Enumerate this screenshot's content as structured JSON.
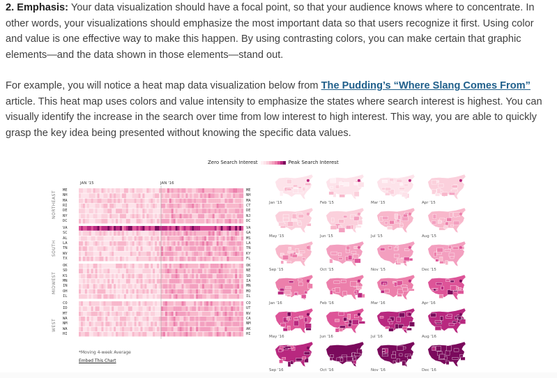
{
  "paragraph1": {
    "heading": "2. Emphasis:",
    "body": " Your data visualization should have a focal point, so that your audience knows where to concentrate. In other words, your visualizations should emphasize the most important data so that users recognize it first. Using color and value is one effective way to make this happen. By using contrasting colors, you can make certain that graphic elements—and the data shown in those elements—stand out."
  },
  "paragraph2": {
    "before": "For example, you will notice a heat map data visualization below from ",
    "link": "The Pudding’s “Where Slang Comes From”",
    "after": " article. This heat map uses colors and value intensity to emphasize the states where search interest is highest. You can visually identify the increase in the search over time from low interest to high interest. This way, you are able to quickly grasp the key idea being presented without knowing the specific data values."
  },
  "figure": {
    "legend_low": "Zero Search Interest",
    "legend_high": "Peak Search Interest",
    "month_left": "JAN '15",
    "month_right": "JAN '16",
    "regions": [
      "NORTHEAST",
      "SOUTH",
      "MIDWEST",
      "WEST"
    ],
    "states_left": [
      [
        "ME",
        "NH",
        "MA",
        "RI",
        "DE",
        "NY",
        "DC"
      ],
      [
        "VA",
        "SC",
        "AL",
        "LA",
        "TN",
        "WV",
        "TX"
      ],
      [
        "OK",
        "SD",
        "KS",
        "MN",
        "IN",
        "OH",
        "IL"
      ],
      [
        "CO",
        "ID",
        "MT",
        "WA",
        "NM",
        "WA",
        "HI"
      ]
    ],
    "states_right": [
      [
        "ME",
        "NH",
        "MA",
        "CT",
        "DE",
        "NJ",
        "DC"
      ],
      [
        "VA",
        "GA",
        "MS",
        "LA",
        "TN",
        "KY",
        "FL"
      ],
      [
        "OK",
        "NE",
        "SD",
        "IA",
        "MN",
        "MO",
        "IL"
      ],
      [
        "CO",
        "UT",
        "NV",
        "CA",
        "NM",
        "AK",
        "HI"
      ]
    ],
    "footnote": "*Moving 4-week Average",
    "embed": "Embed This Chart",
    "map_labels": [
      "Jan '15",
      "Feb '15",
      "Mar '15",
      "Apr '15",
      "May '15",
      "Jun '15",
      "Jul '15",
      "Aug '15",
      "Sep '15",
      "Oct '15",
      "Nov '15",
      "Dec '15",
      "Jan '16",
      "Feb '16",
      "Mar '16",
      "Apr '16",
      "May '16",
      "Jun '16",
      "Jul '16",
      "Aug '16",
      "Sep '16",
      "Oct '16",
      "Nov '16",
      "Dec '16"
    ],
    "colors": {
      "low": "#fde3ea",
      "high": "#7a0a5c",
      "mid": "#f39fbf"
    }
  }
}
